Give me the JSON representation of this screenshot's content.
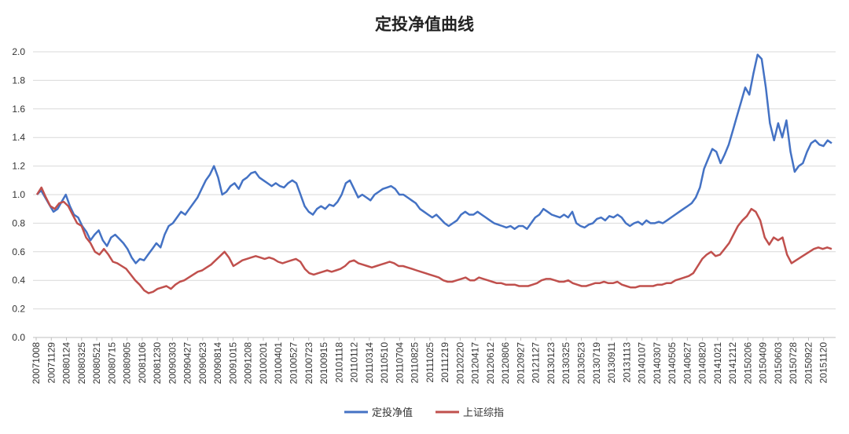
{
  "chart_data": {
    "type": "line",
    "title": "定投净值曲线",
    "xlabel": "",
    "ylabel": "",
    "ylim": [
      0,
      2.0
    ],
    "yticks": [
      "0.0",
      "0.2",
      "0.4",
      "0.6",
      "0.8",
      "1.0",
      "1.2",
      "1.4",
      "1.6",
      "1.8",
      "2.0"
    ],
    "x_tick_labels": [
      "20071008",
      "20071129",
      "20080124",
      "20080325",
      "20080521",
      "20080715",
      "20080905",
      "20081106",
      "20081230",
      "20090303",
      "20090427",
      "20090623",
      "20090814",
      "20091015",
      "20091208",
      "20100201",
      "20100401",
      "20100527",
      "20100723",
      "20100915",
      "20101118",
      "20110112",
      "20110314",
      "20110510",
      "20110704",
      "20110825",
      "20111025",
      "20111219",
      "20120220",
      "20120417",
      "20120612",
      "20120806",
      "20120927",
      "20121127",
      "20130123",
      "20130325",
      "20130523",
      "20130719",
      "20130911",
      "20131113",
      "20140107",
      "20140307",
      "20140505",
      "20140627",
      "20140820",
      "20141021",
      "20141212",
      "20150206",
      "20150409",
      "20150603",
      "20150728",
      "20150922",
      "20151120"
    ],
    "legend_position": "bottom",
    "grid": true,
    "series": [
      {
        "name": "定投净值",
        "color": "#4472C4",
        "values": [
          1.0,
          1.03,
          0.98,
          0.93,
          0.88,
          0.9,
          0.95,
          1.0,
          0.92,
          0.86,
          0.84,
          0.78,
          0.74,
          0.68,
          0.72,
          0.75,
          0.68,
          0.64,
          0.7,
          0.72,
          0.69,
          0.66,
          0.62,
          0.56,
          0.52,
          0.55,
          0.54,
          0.58,
          0.62,
          0.66,
          0.63,
          0.72,
          0.78,
          0.8,
          0.84,
          0.88,
          0.86,
          0.9,
          0.94,
          0.98,
          1.04,
          1.1,
          1.14,
          1.2,
          1.12,
          1.0,
          1.02,
          1.06,
          1.08,
          1.04,
          1.1,
          1.12,
          1.15,
          1.16,
          1.12,
          1.1,
          1.08,
          1.06,
          1.08,
          1.06,
          1.05,
          1.08,
          1.1,
          1.08,
          1.0,
          0.92,
          0.88,
          0.86,
          0.9,
          0.92,
          0.9,
          0.93,
          0.92,
          0.95,
          1.0,
          1.08,
          1.1,
          1.04,
          0.98,
          1.0,
          0.98,
          0.96,
          1.0,
          1.02,
          1.04,
          1.05,
          1.06,
          1.04,
          1.0,
          1.0,
          0.98,
          0.96,
          0.94,
          0.9,
          0.88,
          0.86,
          0.84,
          0.86,
          0.83,
          0.8,
          0.78,
          0.8,
          0.82,
          0.86,
          0.88,
          0.86,
          0.86,
          0.88,
          0.86,
          0.84,
          0.82,
          0.8,
          0.79,
          0.78,
          0.77,
          0.78,
          0.76,
          0.78,
          0.78,
          0.76,
          0.8,
          0.84,
          0.86,
          0.9,
          0.88,
          0.86,
          0.85,
          0.84,
          0.86,
          0.84,
          0.88,
          0.8,
          0.78,
          0.77,
          0.79,
          0.8,
          0.83,
          0.84,
          0.82,
          0.85,
          0.84,
          0.86,
          0.84,
          0.8,
          0.78,
          0.8,
          0.81,
          0.79,
          0.82,
          0.8,
          0.8,
          0.81,
          0.8,
          0.82,
          0.84,
          0.86,
          0.88,
          0.9,
          0.92,
          0.94,
          0.98,
          1.05,
          1.18,
          1.25,
          1.32,
          1.3,
          1.22,
          1.28,
          1.35,
          1.45,
          1.55,
          1.65,
          1.75,
          1.7,
          1.85,
          1.98,
          1.95,
          1.75,
          1.5,
          1.38,
          1.5,
          1.4,
          1.52,
          1.3,
          1.16,
          1.2,
          1.22,
          1.3,
          1.36,
          1.38,
          1.35,
          1.34,
          1.38,
          1.36
        ]
      },
      {
        "name": "上证综指",
        "color": "#C0504D",
        "values": [
          1.0,
          1.05,
          0.98,
          0.92,
          0.9,
          0.94,
          0.95,
          0.92,
          0.86,
          0.8,
          0.78,
          0.7,
          0.66,
          0.6,
          0.58,
          0.62,
          0.58,
          0.53,
          0.52,
          0.5,
          0.48,
          0.44,
          0.4,
          0.37,
          0.33,
          0.31,
          0.32,
          0.34,
          0.35,
          0.36,
          0.34,
          0.37,
          0.39,
          0.4,
          0.42,
          0.44,
          0.46,
          0.47,
          0.49,
          0.51,
          0.54,
          0.57,
          0.6,
          0.56,
          0.5,
          0.52,
          0.54,
          0.55,
          0.56,
          0.57,
          0.56,
          0.55,
          0.56,
          0.55,
          0.53,
          0.52,
          0.53,
          0.54,
          0.55,
          0.53,
          0.48,
          0.45,
          0.44,
          0.45,
          0.46,
          0.47,
          0.46,
          0.47,
          0.48,
          0.5,
          0.53,
          0.54,
          0.52,
          0.51,
          0.5,
          0.49,
          0.5,
          0.51,
          0.52,
          0.53,
          0.52,
          0.5,
          0.5,
          0.49,
          0.48,
          0.47,
          0.46,
          0.45,
          0.44,
          0.43,
          0.42,
          0.4,
          0.39,
          0.39,
          0.4,
          0.41,
          0.42,
          0.4,
          0.4,
          0.42,
          0.41,
          0.4,
          0.39,
          0.38,
          0.38,
          0.37,
          0.37,
          0.37,
          0.36,
          0.36,
          0.36,
          0.37,
          0.38,
          0.4,
          0.41,
          0.41,
          0.4,
          0.39,
          0.39,
          0.4,
          0.38,
          0.37,
          0.36,
          0.36,
          0.37,
          0.38,
          0.38,
          0.39,
          0.38,
          0.38,
          0.39,
          0.37,
          0.36,
          0.35,
          0.35,
          0.36,
          0.36,
          0.36,
          0.36,
          0.37,
          0.37,
          0.38,
          0.38,
          0.4,
          0.41,
          0.42,
          0.43,
          0.45,
          0.5,
          0.55,
          0.58,
          0.6,
          0.57,
          0.58,
          0.62,
          0.66,
          0.72,
          0.78,
          0.82,
          0.85,
          0.9,
          0.88,
          0.82,
          0.7,
          0.65,
          0.7,
          0.68,
          0.7,
          0.58,
          0.52,
          0.54,
          0.56,
          0.58,
          0.6,
          0.62,
          0.63,
          0.62,
          0.63,
          0.62
        ]
      }
    ]
  }
}
